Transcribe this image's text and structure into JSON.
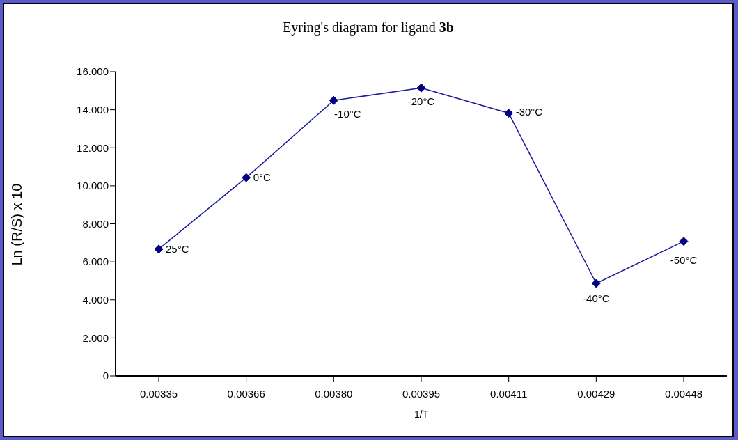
{
  "chart_data": {
    "type": "line",
    "title": "Eyring's diagram for ligand 3b",
    "xlabel": "1/T",
    "ylabel": "Ln (R/S) x 10",
    "categories": [
      "0.00335",
      "0.00366",
      "0.00380",
      "0.00395",
      "0.00411",
      "0.00429",
      "0.00448"
    ],
    "series": [
      {
        "color": "#1a1aa0",
        "values": [
          6.67,
          10.43,
          14.49,
          15.15,
          13.82,
          4.87,
          7.08
        ]
      }
    ],
    "ylim": [
      0,
      16
    ],
    "yticks": [
      0,
      {
        "value": 2,
        "label": "2.000"
      },
      {
        "value": 4,
        "label": "4.000"
      },
      {
        "value": 6,
        "label": "6.000"
      },
      {
        "value": 8,
        "label": "8.000"
      },
      {
        "value": 10,
        "label": "10.000"
      },
      {
        "value": 12,
        "label": "12.000"
      },
      {
        "value": 14,
        "label": "14.000"
      },
      {
        "value": 16,
        "label": "16.000"
      }
    ],
    "marker": "diamond",
    "line_style": "solid",
    "grid": false,
    "legend": false,
    "annotations": [
      {
        "text": "25°C",
        "x": "0.00335",
        "y": 6.67
      },
      {
        "text": "0°C",
        "x": "0.00366",
        "y": 10.43
      },
      {
        "text": "-10°C",
        "x": "0.00380",
        "y": 14.49
      },
      {
        "text": "-20°C",
        "x": "0.00395",
        "y": 15.15
      },
      {
        "text": "-30°C",
        "x": "0.00411",
        "y": 13.82
      },
      {
        "text": "-40°C",
        "x": "0.00429",
        "y": 4.87
      },
      {
        "text": "-50°C",
        "x": "0.00448",
        "y": 7.08
      }
    ]
  }
}
